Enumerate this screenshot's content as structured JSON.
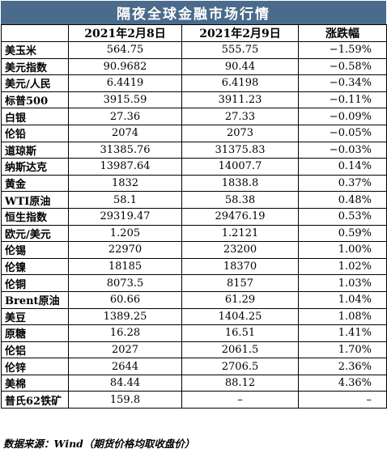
{
  "title": "隔夜全球金融市场行情",
  "headers": [
    "",
    "2021年2月8日",
    "2021年2月9日",
    "涨跌幅"
  ],
  "rows": [
    {
      "name": "美玉米",
      "d1": "564.75",
      "d2": "555.75",
      "chg": "−1.59%"
    },
    {
      "name": "美元指数",
      "d1": "90.9682",
      "d2": "90.44",
      "chg": "−0.58%"
    },
    {
      "name": "美元/人民",
      "d1": "6.4419",
      "d2": "6.4198",
      "chg": "−0.34%"
    },
    {
      "name": "标普500",
      "d1": "3915.59",
      "d2": "3911.23",
      "chg": "−0.11%"
    },
    {
      "name": "白银",
      "d1": "27.36",
      "d2": "27.33",
      "chg": "−0.09%"
    },
    {
      "name": "伦铅",
      "d1": "2074",
      "d2": "2073",
      "chg": "−0.05%"
    },
    {
      "name": "道琼斯",
      "d1": "31385.76",
      "d2": "31375.83",
      "chg": "−0.03%"
    },
    {
      "name": "纳斯达克",
      "d1": "13987.64",
      "d2": "14007.7",
      "chg": "0.14%"
    },
    {
      "name": "黄金",
      "d1": "1832",
      "d2": "1838.8",
      "chg": "0.37%"
    },
    {
      "name": "WTI原油",
      "d1": "58.1",
      "d2": "58.38",
      "chg": "0.48%"
    },
    {
      "name": "恒生指数",
      "d1": "29319.47",
      "d2": "29476.19",
      "chg": "0.53%"
    },
    {
      "name": "欧元/美元",
      "d1": "1.205",
      "d2": "1.2121",
      "chg": "0.59%"
    },
    {
      "name": "伦锡",
      "d1": "22970",
      "d2": "23200",
      "chg": "1.00%"
    },
    {
      "name": "伦镍",
      "d1": "18185",
      "d2": "18370",
      "chg": "1.02%"
    },
    {
      "name": "伦铜",
      "d1": "8073.5",
      "d2": "8157",
      "chg": "1.03%"
    },
    {
      "name": "Brent原油",
      "d1": "60.66",
      "d2": "61.29",
      "chg": "1.04%"
    },
    {
      "name": "美豆",
      "d1": "1389.25",
      "d2": "1404.25",
      "chg": "1.08%"
    },
    {
      "name": "原糖",
      "d1": "16.28",
      "d2": "16.51",
      "chg": "1.41%"
    },
    {
      "name": "伦铝",
      "d1": "2027",
      "d2": "2061.5",
      "chg": "1.70%"
    },
    {
      "name": "伦锌",
      "d1": "2644",
      "d2": "2706.5",
      "chg": "2.36%"
    },
    {
      "name": "美棉",
      "d1": "84.44",
      "d2": "88.12",
      "chg": "4.36%"
    },
    {
      "name": "普氏62铁矿",
      "d1": "159.8",
      "d2": "–",
      "chg": "–"
    }
  ],
  "footer": "数据来源：Wind（期货价格均取收盘价）",
  "colors": {
    "title_bg": "#4a6b8c",
    "title_text": "#ffffff"
  }
}
